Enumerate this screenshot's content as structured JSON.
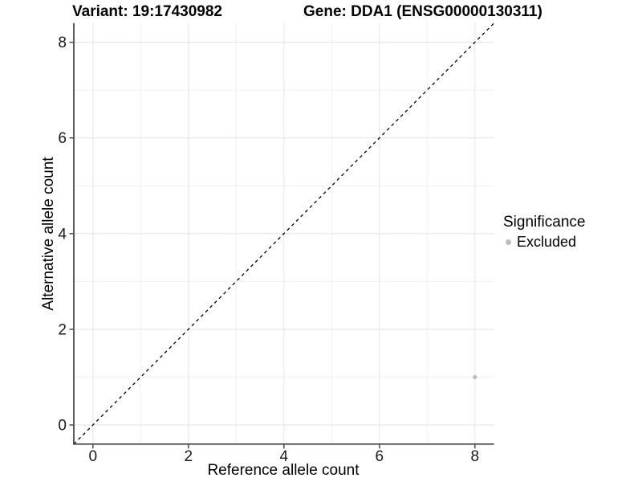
{
  "header": {
    "variant_title": "Variant: 19:17430982",
    "gene_title": "Gene: DDA1 (ENSG00000130311)"
  },
  "chart_data": {
    "type": "scatter",
    "title": "Variant: 19:17430982   Gene: DDA1 (ENSG00000130311)",
    "xlabel": "Reference allele count",
    "ylabel": "Alternative allele count",
    "xlim": [
      -0.4,
      8.4
    ],
    "ylim": [
      -0.4,
      8.4
    ],
    "x_ticks": [
      0,
      2,
      4,
      6,
      8
    ],
    "y_ticks": [
      0,
      2,
      4,
      6,
      8
    ],
    "x_minor_ticks": [
      1,
      3,
      5,
      7
    ],
    "y_minor_ticks": [
      1,
      3,
      5,
      7
    ],
    "grid": true,
    "legend_position": "right",
    "series": [
      {
        "name": "Excluded",
        "color": "#bdbdbd",
        "points": [
          {
            "x": 8,
            "y": 1
          }
        ]
      }
    ],
    "reference_line": {
      "type": "identity",
      "from": -0.4,
      "to": 8.4,
      "style": "dashed",
      "color": "#000000"
    }
  },
  "legend": {
    "title": "Significance",
    "items": [
      {
        "label": "Excluded",
        "color": "#bdbdbd"
      }
    ]
  },
  "style_colors": {
    "axis_line": "#404040",
    "tick_label": "#1a1a1a",
    "grid_major": "#e3e3e3",
    "grid_minor": "#f0f0f0",
    "background": "#ffffff"
  }
}
